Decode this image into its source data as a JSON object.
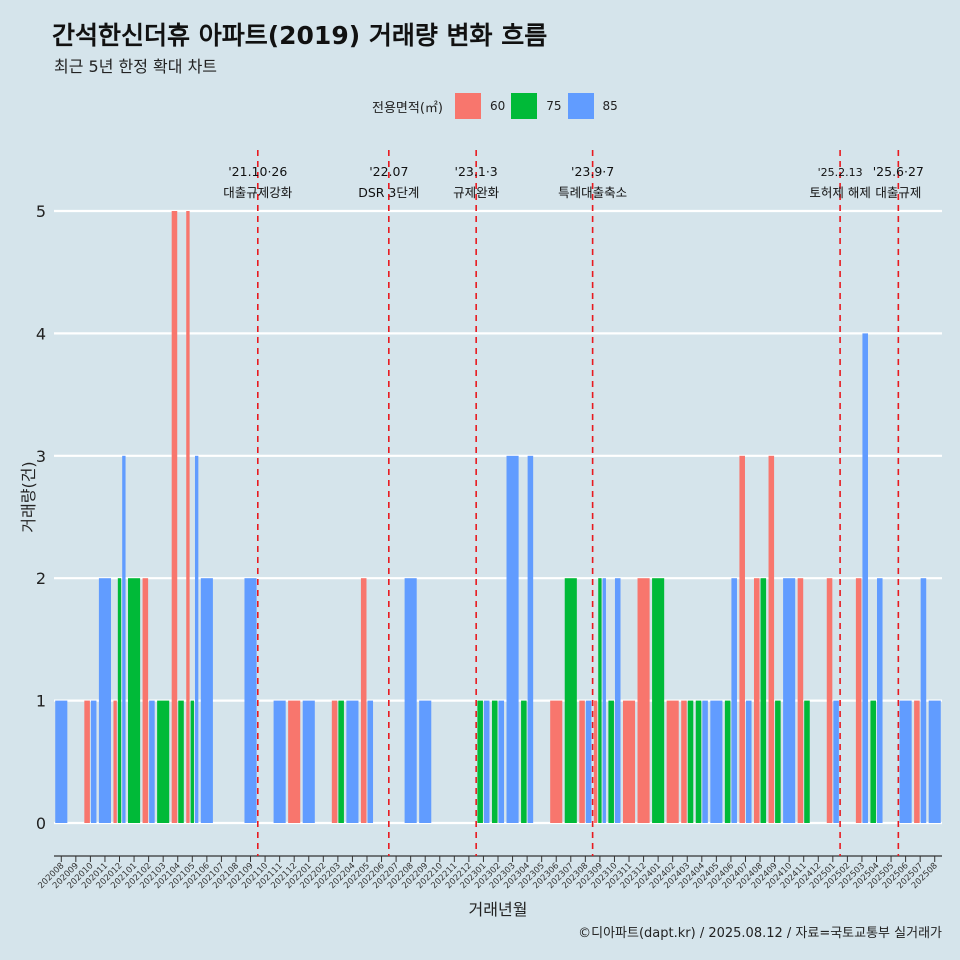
{
  "header": {
    "title": "간석한신더휴 아파트(2019) 거래량 변화 흐름",
    "subtitle": "최근 5년 한정 확대 차트",
    "caption": "©디아파트(dapt.kr) / 2025.08.12 / 자료=국토교통부 실거래가"
  },
  "legend": {
    "title": "전용면적(㎡)",
    "items": [
      {
        "label": "60",
        "color": "#f8766d"
      },
      {
        "label": "75",
        "color": "#00ba38"
      },
      {
        "label": "85",
        "color": "#619cff"
      }
    ]
  },
  "chart_data": {
    "type": "bar",
    "title": "간석한신더휴 아파트(2019) 거래량 변화 흐름",
    "subtitle": "최근 5년 한정 확대 차트",
    "xlabel": "거래년월",
    "ylabel": "거래량(건)",
    "ylim": [
      0,
      5
    ],
    "yticks": [
      0,
      1,
      2,
      3,
      4,
      5
    ],
    "grid": true,
    "legend_position": "top",
    "categories": [
      "202008",
      "202009",
      "202010",
      "202011",
      "202012",
      "202101",
      "202102",
      "202103",
      "202104",
      "202105",
      "202106",
      "202107",
      "202108",
      "202109",
      "202110",
      "202111",
      "202112",
      "202201",
      "202202",
      "202203",
      "202204",
      "202205",
      "202206",
      "202207",
      "202208",
      "202209",
      "202210",
      "202211",
      "202212",
      "202301",
      "202302",
      "202303",
      "202304",
      "202305",
      "202306",
      "202307",
      "202308",
      "202309",
      "202310",
      "202311",
      "202312",
      "202401",
      "202402",
      "202403",
      "202404",
      "202405",
      "202406",
      "202407",
      "202408",
      "202409",
      "202410",
      "202411",
      "202412",
      "202501",
      "202502",
      "202503",
      "202504",
      "202505",
      "202506",
      "202507",
      "202508"
    ],
    "series": [
      {
        "name": "60",
        "color": "#f8766d",
        "values": [
          0,
          0,
          1,
          0,
          1,
          0,
          2,
          0,
          5,
          5,
          0,
          0,
          0,
          0,
          0,
          0,
          1,
          0,
          0,
          1,
          0,
          2,
          0,
          0,
          0,
          0,
          0,
          0,
          0,
          0,
          0,
          0,
          0,
          0,
          1,
          0,
          1,
          1,
          0,
          1,
          2,
          0,
          1,
          1,
          0,
          0,
          0,
          3,
          2,
          3,
          0,
          2,
          0,
          2,
          0,
          2,
          0,
          0,
          0,
          1,
          0
        ]
      },
      {
        "name": "75",
        "color": "#00ba38",
        "values": [
          0,
          0,
          0,
          0,
          2,
          2,
          0,
          1,
          1,
          1,
          0,
          0,
          0,
          0,
          0,
          0,
          0,
          0,
          0,
          1,
          0,
          0,
          0,
          0,
          0,
          0,
          0,
          0,
          0,
          1,
          1,
          0,
          1,
          0,
          0,
          2,
          0,
          2,
          1,
          0,
          0,
          2,
          0,
          1,
          1,
          0,
          1,
          0,
          2,
          1,
          0,
          1,
          0,
          0,
          0,
          0,
          1,
          0,
          0,
          0,
          0
        ]
      },
      {
        "name": "85",
        "color": "#619cff",
        "values": [
          1,
          0,
          1,
          2,
          3,
          0,
          1,
          0,
          0,
          3,
          2,
          0,
          0,
          2,
          0,
          1,
          0,
          1,
          0,
          0,
          1,
          1,
          0,
          0,
          2,
          1,
          0,
          0,
          0,
          1,
          1,
          3,
          3,
          0,
          0,
          0,
          1,
          2,
          2,
          0,
          0,
          0,
          0,
          0,
          1,
          1,
          2,
          1,
          0,
          0,
          2,
          0,
          0,
          1,
          0,
          4,
          2,
          0,
          1,
          2,
          1
        ]
      }
    ],
    "annotations": [
      {
        "x": "202110",
        "date": "'21.10·26",
        "label": "대출규제강화"
      },
      {
        "x": "202207",
        "date": "'22.07",
        "label": "DSR 3단계"
      },
      {
        "x": "202301",
        "date": "'23.1·3",
        "label": "규제완화"
      },
      {
        "x": "202309",
        "date": "'23.9·7",
        "label": "특례대출축소"
      },
      {
        "x": "202502",
        "date": "'25.2.13",
        "label": "토허제 해제"
      },
      {
        "x": "202506",
        "date": "'25.6·27",
        "label": "대출규제"
      }
    ]
  }
}
